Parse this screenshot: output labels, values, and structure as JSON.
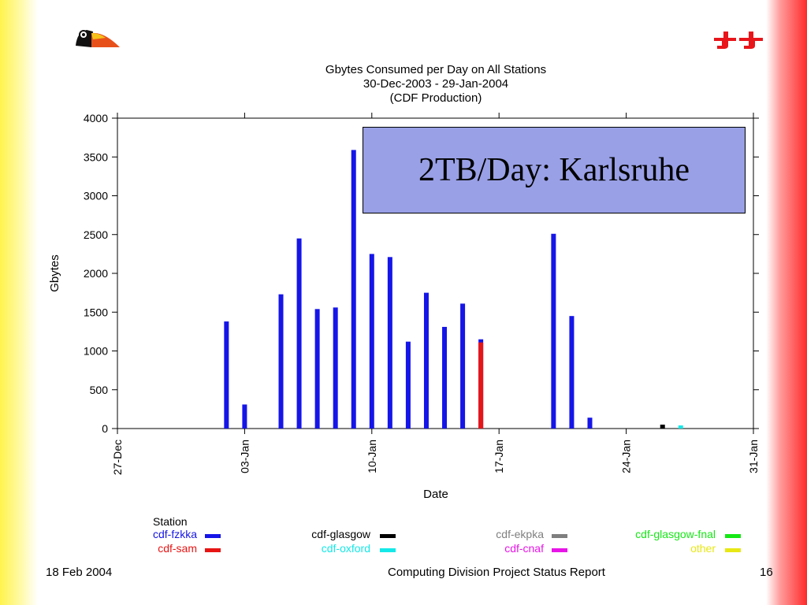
{
  "slide": {
    "footer_date": "18 Feb  2004",
    "footer_title": "Computing Division Project Status Report",
    "page_number": "16"
  },
  "callout": {
    "text": "2TB/Day: Karlsruhe"
  },
  "chart_data": {
    "type": "bar",
    "title_lines": [
      "Gbytes Consumed per Day on All Stations",
      "30-Dec-2003 - 29-Jan-2004",
      "(CDF Production)"
    ],
    "xlabel": "Date",
    "ylabel": "Gbytes",
    "ylim": [
      0,
      4000
    ],
    "yticks": [
      0,
      500,
      1000,
      1500,
      2000,
      2500,
      3000,
      3500,
      4000
    ],
    "xticks": [
      {
        "day": 0,
        "label": "27-Dec"
      },
      {
        "day": 7,
        "label": "03-Jan"
      },
      {
        "day": 14,
        "label": "10-Jan"
      },
      {
        "day": 21,
        "label": "17-Jan"
      },
      {
        "day": 28,
        "label": "24-Jan"
      },
      {
        "day": 35,
        "label": "31-Jan"
      }
    ],
    "xlim": [
      0,
      35
    ],
    "legend_title": "Station",
    "series": [
      {
        "name": "cdf-fzkka",
        "color": "#1515e8",
        "x": [
          6,
          7,
          9,
          10,
          11,
          12,
          13,
          14,
          15,
          16,
          17,
          18,
          19,
          20,
          24,
          25,
          26
        ],
        "values": [
          1380,
          310,
          1730,
          2450,
          1540,
          1560,
          3590,
          2250,
          2210,
          1120,
          1750,
          1310,
          1610,
          1150,
          2510,
          1450,
          140
        ]
      },
      {
        "name": "cdf-sam",
        "color": "#e81515",
        "x": [
          20
        ],
        "values": [
          1110
        ]
      },
      {
        "name": "cdf-glasgow",
        "color": "#000000",
        "x": [
          30
        ],
        "values": [
          50
        ]
      },
      {
        "name": "cdf-oxford",
        "color": "#15e8e8",
        "x": [
          31
        ],
        "values": [
          40
        ]
      },
      {
        "name": "cdf-ekpka",
        "color": "#7f7f7f",
        "x": [],
        "values": []
      },
      {
        "name": "cdf-cnaf",
        "color": "#e815e8",
        "x": [],
        "values": []
      },
      {
        "name": "cdf-glasgow-fnal",
        "color": "#15e815",
        "x": [],
        "values": []
      },
      {
        "name": "other",
        "color": "#e8e815",
        "x": [],
        "values": []
      }
    ]
  }
}
